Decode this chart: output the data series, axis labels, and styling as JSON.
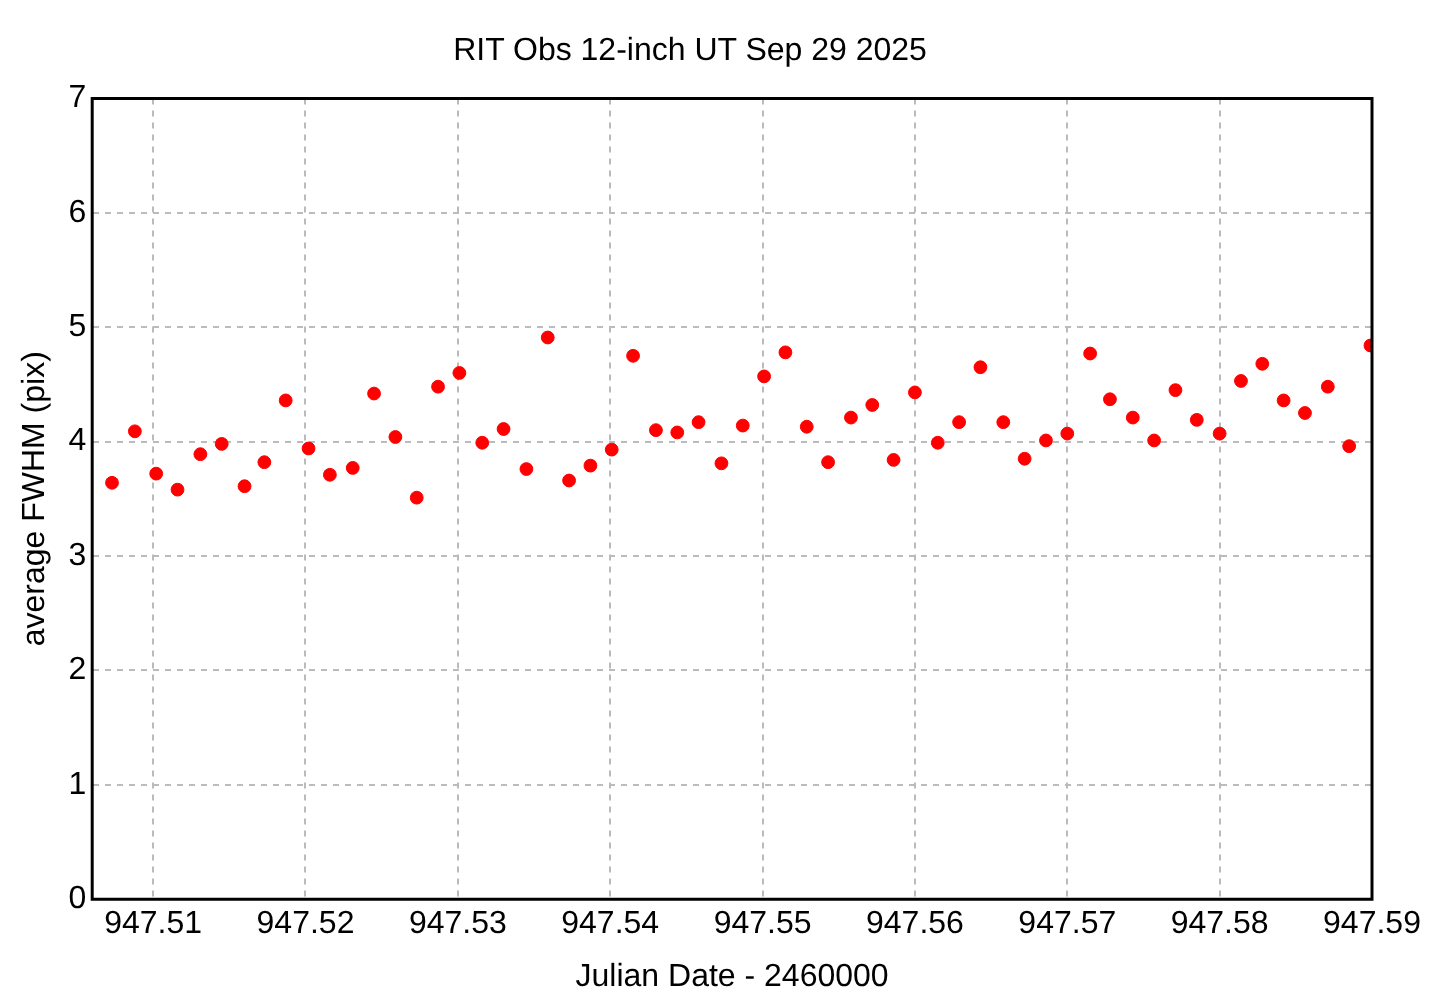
{
  "chart_data": {
    "type": "scatter",
    "title": "RIT Obs 12-inch UT Sep 29 2025",
    "xlabel": "Julian Date - 2460000",
    "ylabel": "average FWHM (pix)",
    "x": [
      947.5073,
      947.5088,
      947.5102,
      947.5116,
      947.5131,
      947.5145,
      947.516,
      947.5173,
      947.5187,
      947.5202,
      947.5216,
      947.5231,
      947.5245,
      947.5259,
      947.5273,
      947.5287,
      947.5301,
      947.5316,
      947.533,
      947.5345,
      947.5359,
      947.5373,
      947.5387,
      947.5401,
      947.5415,
      947.543,
      947.5444,
      947.5458,
      947.5473,
      947.5487,
      947.5501,
      947.5515,
      947.5529,
      947.5543,
      947.5558,
      947.5572,
      947.5586,
      947.56,
      947.5615,
      947.5629,
      947.5643,
      947.5658,
      947.5672,
      947.5686,
      947.57,
      947.5715,
      947.5728,
      947.5743,
      947.5757,
      947.5771,
      947.5785,
      947.58,
      947.5814,
      947.5828,
      947.5842,
      947.5856,
      947.5871,
      947.5885,
      947.5899
    ],
    "series": [
      {
        "color": "#ff0000",
        "values": [
          3.64,
          4.09,
          3.72,
          3.58,
          3.89,
          3.98,
          3.61,
          3.82,
          4.36,
          3.94,
          3.71,
          3.77,
          4.42,
          4.04,
          3.51,
          4.48,
          4.6,
          3.99,
          4.11,
          3.76,
          4.91,
          3.66,
          3.79,
          3.93,
          4.75,
          4.1,
          4.08,
          4.17,
          3.81,
          4.14,
          4.57,
          4.78,
          4.13,
          3.82,
          4.21,
          4.32,
          3.84,
          4.43,
          3.99,
          4.17,
          4.65,
          4.17,
          3.85,
          4.01,
          4.07,
          4.77,
          4.37,
          4.21,
          4.01,
          4.45,
          4.19,
          4.07,
          4.53,
          4.68,
          4.36,
          4.25,
          4.48,
          3.96,
          4.84
        ]
      }
    ],
    "xlim": [
      947.506,
      947.59
    ],
    "xticks": [
      947.51,
      947.52,
      947.53,
      947.54,
      947.55,
      947.56,
      947.57,
      947.58,
      947.59
    ],
    "ylim": [
      0,
      7
    ],
    "yticks": [
      0,
      1,
      2,
      3,
      4,
      5,
      6,
      7
    ],
    "grid": true,
    "marker": "circle",
    "legend": false
  }
}
